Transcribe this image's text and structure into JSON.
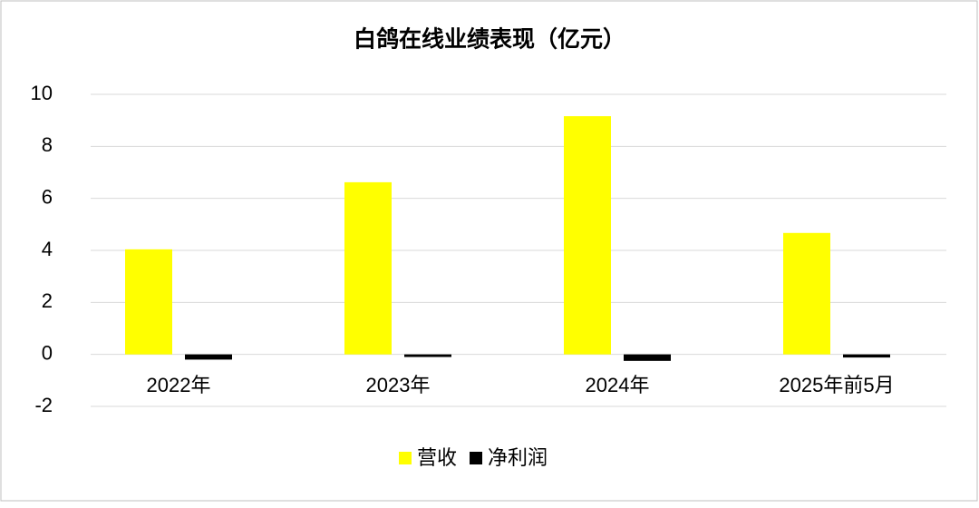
{
  "chart_data": {
    "type": "bar",
    "title": "白鸽在线业绩表现（亿元）",
    "categories": [
      "2022年",
      "2023年",
      "2024年",
      "2025年前5月"
    ],
    "series": [
      {
        "name": "营收",
        "color": "#ffff00",
        "values": [
          4.04,
          6.62,
          9.16,
          4.67
        ]
      },
      {
        "name": "净利润",
        "color": "#000000",
        "values": [
          -0.2,
          -0.1,
          -0.25,
          -0.12
        ]
      }
    ],
    "ylim": [
      -2,
      10
    ],
    "yticks": [
      -2,
      0,
      2,
      4,
      6,
      8,
      10
    ],
    "grid": true,
    "legend": "bottom"
  }
}
